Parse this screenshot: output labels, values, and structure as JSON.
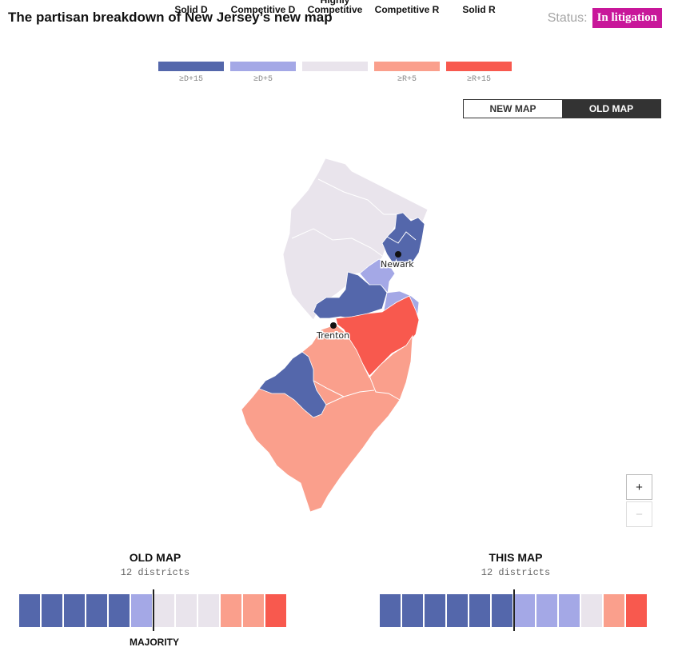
{
  "header": {
    "title": "The partisan breakdown of New Jersey’s new map",
    "status_label": "Status:",
    "status_value": "In litigation",
    "status_color": "#c8179a"
  },
  "legend": [
    {
      "label": "Solid D",
      "note": "≥D+15",
      "color": "#5467ab"
    },
    {
      "label": "Competitive D",
      "note": "≥D+5",
      "color": "#a4a8e6"
    },
    {
      "label": "Highly Competitive",
      "note": "",
      "color": "#e9e4ec"
    },
    {
      "label": "Competitive R",
      "note": "≥R+5",
      "color": "#fa9f8c"
    },
    {
      "label": "Solid R",
      "note": "≥R+15",
      "color": "#f8594e"
    }
  ],
  "toggle": {
    "new_label": "NEW MAP",
    "old_label": "OLD MAP",
    "active": "old"
  },
  "map": {
    "cities": [
      {
        "name": "Newark"
      },
      {
        "name": "Trenton"
      }
    ],
    "zoom_in": "+",
    "zoom_out": "−"
  },
  "old_map": {
    "title": "OLD MAP",
    "subtitle": "12 districts",
    "seats": [
      "solid_d",
      "solid_d",
      "solid_d",
      "solid_d",
      "solid_d",
      "comp_d",
      "highly",
      "highly",
      "highly",
      "comp_r",
      "comp_r",
      "solid_r"
    ],
    "majority_label": "MAJORITY"
  },
  "this_map": {
    "title": "THIS MAP",
    "subtitle": "12 districts",
    "seats": [
      "solid_d",
      "solid_d",
      "solid_d",
      "solid_d",
      "solid_d",
      "solid_d",
      "comp_d",
      "comp_d",
      "comp_d",
      "highly",
      "comp_r",
      "solid_r"
    ]
  },
  "colors": {
    "solid_d": "#5467ab",
    "comp_d": "#a4a8e6",
    "highly": "#e9e4ec",
    "comp_r": "#fa9f8c",
    "solid_r": "#f8594e"
  }
}
